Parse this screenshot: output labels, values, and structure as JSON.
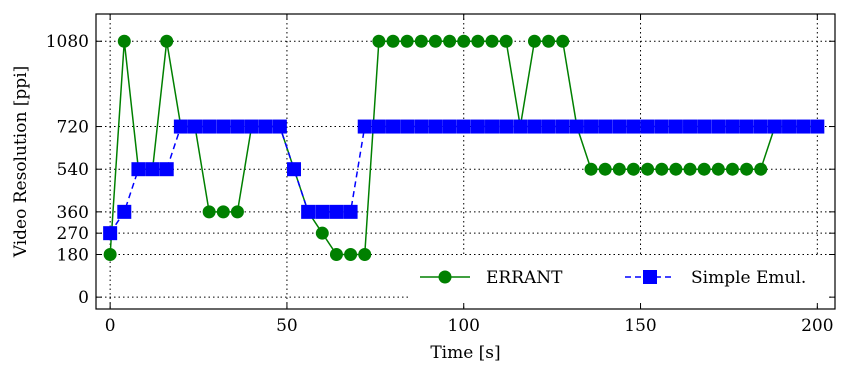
{
  "chart_data": {
    "type": "line",
    "xlabel": "Time [s]",
    "ylabel": "Video Resolution [ppi]",
    "xlim": [
      -4,
      205
    ],
    "ylim": [
      -50,
      1195
    ],
    "xticks": [
      0,
      50,
      100,
      150,
      200
    ],
    "yticks": [
      0,
      180,
      270,
      360,
      540,
      720,
      1080
    ],
    "grid": true,
    "legend_position": "bottom-right",
    "series": [
      {
        "name": "ERRANT",
        "color": "#008000",
        "marker": "circle",
        "line_style": "solid",
        "x": [
          0,
          4,
          8,
          12,
          16,
          20,
          24,
          28,
          32,
          36,
          40,
          44,
          48,
          52,
          56,
          60,
          64,
          68,
          72,
          76,
          80,
          84,
          88,
          92,
          96,
          100,
          104,
          108,
          112,
          116,
          120,
          124,
          128,
          132,
          136,
          140,
          144,
          148,
          152,
          156,
          160,
          164,
          168,
          172,
          176,
          180,
          184,
          188,
          192,
          196,
          200
        ],
        "y": [
          180,
          1080,
          540,
          540,
          1080,
          720,
          720,
          360,
          360,
          360,
          720,
          720,
          720,
          540,
          360,
          270,
          180,
          180,
          180,
          1080,
          1080,
          1080,
          1080,
          1080,
          1080,
          1080,
          1080,
          1080,
          1080,
          720,
          1080,
          1080,
          1080,
          720,
          540,
          540,
          540,
          540,
          540,
          540,
          540,
          540,
          540,
          540,
          540,
          540,
          540,
          720,
          720,
          720,
          720
        ]
      },
      {
        "name": "Simple Emul.",
        "color": "#0000ff",
        "marker": "square",
        "line_style": "dashed",
        "x": [
          0,
          4,
          8,
          12,
          16,
          20,
          24,
          28,
          32,
          36,
          40,
          44,
          48,
          52,
          56,
          60,
          64,
          68,
          72,
          76,
          80,
          84,
          88,
          92,
          96,
          100,
          104,
          108,
          112,
          116,
          120,
          124,
          128,
          132,
          136,
          140,
          144,
          148,
          152,
          156,
          160,
          164,
          168,
          172,
          176,
          180,
          184,
          188,
          192,
          196,
          200
        ],
        "y": [
          270,
          360,
          540,
          540,
          540,
          720,
          720,
          720,
          720,
          720,
          720,
          720,
          720,
          540,
          360,
          360,
          360,
          360,
          720,
          720,
          720,
          720,
          720,
          720,
          720,
          720,
          720,
          720,
          720,
          720,
          720,
          720,
          720,
          720,
          720,
          720,
          720,
          720,
          720,
          720,
          720,
          720,
          720,
          720,
          720,
          720,
          720,
          720,
          720,
          720,
          720
        ]
      }
    ]
  }
}
